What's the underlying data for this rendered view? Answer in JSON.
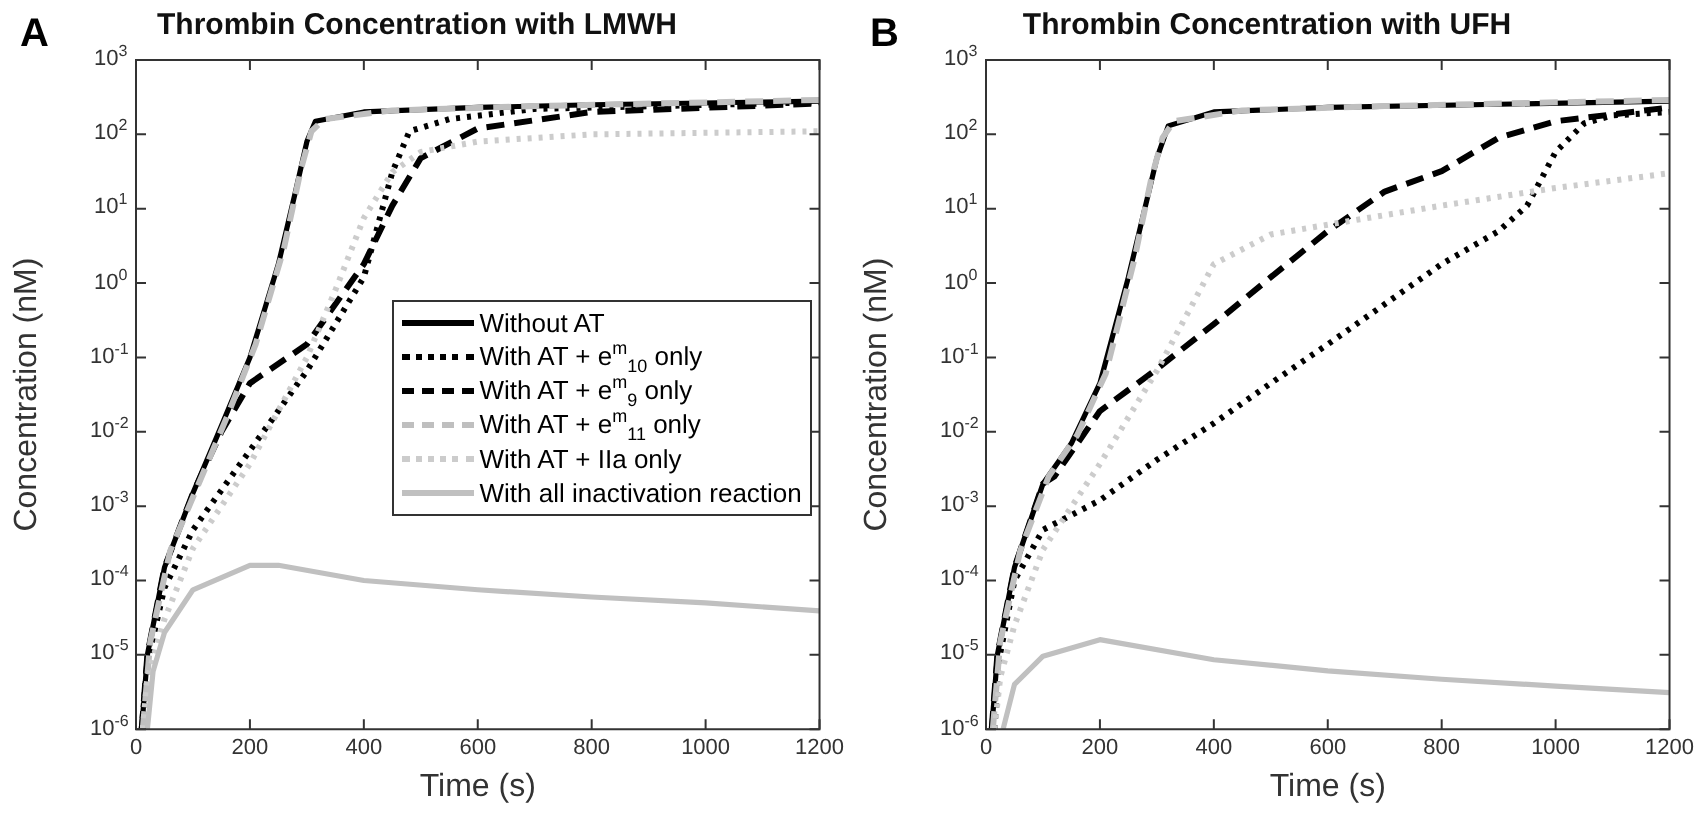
{
  "chart_data": [
    {
      "type": "line",
      "title": "Thrombin Concentration with LMWH",
      "xlabel": "Time (s)",
      "ylabel": "Concentration (nM)",
      "annotations": [
        "A"
      ],
      "log": "y",
      "grid": false,
      "legend": "right",
      "xlim": [
        0,
        1200
      ],
      "xticks": [
        0,
        200,
        400,
        600,
        800,
        1000,
        1200
      ],
      "ylim": [
        1e-06,
        1000
      ],
      "yticks": [
        {
          "value": 1e-06,
          "label": "10$^{-6}$"
        },
        {
          "value": 1e-05,
          "label": "10$^{-5}$"
        },
        {
          "value": 0.0001,
          "label": "10$^{-4}$"
        },
        {
          "value": 0.001,
          "label": "10$^{-3}$"
        },
        {
          "value": 0.01,
          "label": "10$^{-2}$"
        },
        {
          "value": 0.1,
          "label": "10$^{-1}$"
        },
        {
          "value": 1,
          "label": "10$^{0}$"
        },
        {
          "value": 10,
          "label": "10$^{1}$"
        },
        {
          "value": 100,
          "label": "10$^{2}$"
        },
        {
          "value": 1000,
          "label": "10$^{3}$"
        }
      ],
      "series": [
        {
          "name": "Without AT",
          "color": "#000000",
          "line_style": "solid",
          "x": [
            10,
            20,
            50,
            100,
            150,
            200,
            250,
            280,
            300,
            315,
            400,
            600,
            800,
            1200
          ],
          "values": [
            1e-06,
            1e-05,
            0.00015,
            0.0015,
            0.012,
            0.1,
            1.8,
            17,
            80,
            150,
            200,
            230,
            250,
            280
          ]
        },
        {
          "name": "With AT + e$^{m}$$_{10}$ only",
          "color": "#000000",
          "line_style": "dotted",
          "x": [
            10,
            20,
            50,
            100,
            200,
            300,
            400,
            450,
            480,
            550,
            700,
            1200
          ],
          "values": [
            1e-06,
            8e-06,
            8e-05,
            0.00048,
            0.0056,
            0.066,
            1.2,
            31,
            110,
            160,
            220,
            270
          ]
        },
        {
          "name": "With AT + e$^{m}$$_{9}$ only",
          "color": "#000000",
          "line_style": "dashed",
          "x": [
            10,
            20,
            50,
            100,
            150,
            200,
            300,
            400,
            450,
            500,
            600,
            800,
            1200
          ],
          "values": [
            1e-06,
            1e-05,
            0.00015,
            0.0015,
            0.01,
            0.045,
            0.15,
            1.8,
            11,
            48,
            120,
            200,
            260
          ]
        },
        {
          "name": "With AT + e$^{m}$$_{11}$ only",
          "color": "#bfbfbf",
          "line_style": "dashed",
          "x": [
            12,
            25,
            60,
            110,
            160,
            210,
            260,
            290,
            308,
            330,
            450,
            700,
            1200
          ],
          "values": [
            1e-06,
            1.5e-05,
            0.00025,
            0.002,
            0.016,
            0.15,
            3,
            35,
            110,
            160,
            210,
            240,
            290
          ]
        },
        {
          "name": "With AT + IIa only",
          "color": "#cccccc",
          "line_style": "dotted",
          "x": [
            12,
            20,
            50,
            100,
            200,
            300,
            350,
            400,
            450,
            500,
            600,
            800,
            1200
          ],
          "values": [
            1e-06,
            5e-06,
            3e-05,
            0.00027,
            0.0037,
            0.1,
            0.8,
            7.5,
            31,
            58,
            80,
            100,
            110
          ]
        },
        {
          "name": "With all inactivation reaction",
          "color": "#c0c0c0",
          "line_style": "solid",
          "x": [
            20,
            30,
            50,
            100,
            200,
            250,
            400,
            600,
            800,
            1000,
            1200
          ],
          "values": [
            1e-06,
            6e-06,
            2e-05,
            7.5e-05,
            0.00016,
            0.00016,
            0.0001,
            7.5e-05,
            6e-05,
            5e-05,
            3.9e-05
          ]
        }
      ]
    },
    {
      "type": "line",
      "title": "Thrombin Concentration with UFH",
      "xlabel": "Time (s)",
      "ylabel": "Concentration (nM)",
      "annotations": [
        "B"
      ],
      "log": "y",
      "grid": false,
      "xlim": [
        0,
        1200
      ],
      "xticks": [
        0,
        200,
        400,
        600,
        800,
        1000,
        1200
      ],
      "ylim": [
        1e-06,
        1000
      ],
      "yticks": [
        {
          "value": 1e-06,
          "label": "10$^{-6}$"
        },
        {
          "value": 1e-05,
          "label": "10$^{-5}$"
        },
        {
          "value": 0.0001,
          "label": "10$^{-4}$"
        },
        {
          "value": 0.001,
          "label": "10$^{-3}$"
        },
        {
          "value": 0.01,
          "label": "10$^{-2}$"
        },
        {
          "value": 0.1,
          "label": "10$^{-1}$"
        },
        {
          "value": 1,
          "label": "10$^{0}$"
        },
        {
          "value": 10,
          "label": "10$^{1}$"
        },
        {
          "value": 100,
          "label": "10$^{2}$"
        },
        {
          "value": 1000,
          "label": "10$^{3}$"
        }
      ],
      "series": [
        {
          "color": "#000000",
          "line_style": "solid",
          "x": [
            10,
            20,
            50,
            100,
            150,
            200,
            250,
            300,
            320,
            400,
            600,
            1200
          ],
          "values": [
            1e-06,
            1e-05,
            0.00015,
            0.002,
            0.007,
            0.045,
            1.2,
            48,
            130,
            200,
            230,
            280
          ]
        },
        {
          "color": "#000000",
          "line_style": "dotted",
          "x": [
            15,
            22,
            50,
            100,
            200,
            300,
            400,
            500,
            600,
            700,
            800,
            900,
            950,
            1000,
            1050,
            1100,
            1200
          ],
          "values": [
            1e-06,
            8e-06,
            0.0001,
            0.00048,
            0.0012,
            0.0042,
            0.013,
            0.045,
            0.15,
            0.52,
            1.8,
            5,
            11,
            58,
            140,
            180,
            200
          ]
        },
        {
          "color": "#000000",
          "line_style": "dashed",
          "x": [
            10,
            20,
            50,
            100,
            120,
            200,
            300,
            400,
            500,
            600,
            700,
            800,
            900,
            1000,
            1200
          ],
          "values": [
            1e-06,
            1e-05,
            0.00015,
            0.002,
            0.0025,
            0.019,
            0.07,
            0.28,
            1.2,
            5,
            17,
            32,
            90,
            150,
            230
          ]
        },
        {
          "color": "#bfbfbf",
          "line_style": "dashed",
          "x": [
            12,
            25,
            60,
            110,
            160,
            210,
            260,
            290,
            310,
            330,
            450,
            700,
            1200
          ],
          "values": [
            1e-06,
            1.5e-05,
            0.00025,
            0.0025,
            0.009,
            0.06,
            2,
            25,
            90,
            150,
            210,
            240,
            290
          ]
        },
        {
          "color": "#cccccc",
          "line_style": "dotted",
          "x": [
            15,
            25,
            50,
            100,
            200,
            300,
            400,
            500,
            600,
            800,
            1000,
            1200
          ],
          "values": [
            1e-06,
            5e-06,
            2.5e-05,
            0.00026,
            0.0037,
            0.066,
            1.8,
            4.5,
            6.1,
            11,
            19,
            30
          ]
        },
        {
          "color": "#c0c0c0",
          "line_style": "solid",
          "x": [
            30,
            50,
            100,
            200,
            400,
            600,
            800,
            1000,
            1200
          ],
          "values": [
            1e-06,
            4e-06,
            9.6e-06,
            1.6e-05,
            8.6e-06,
            6.1e-06,
            4.7e-06,
            3.8e-06,
            3.1e-06
          ]
        }
      ]
    }
  ]
}
